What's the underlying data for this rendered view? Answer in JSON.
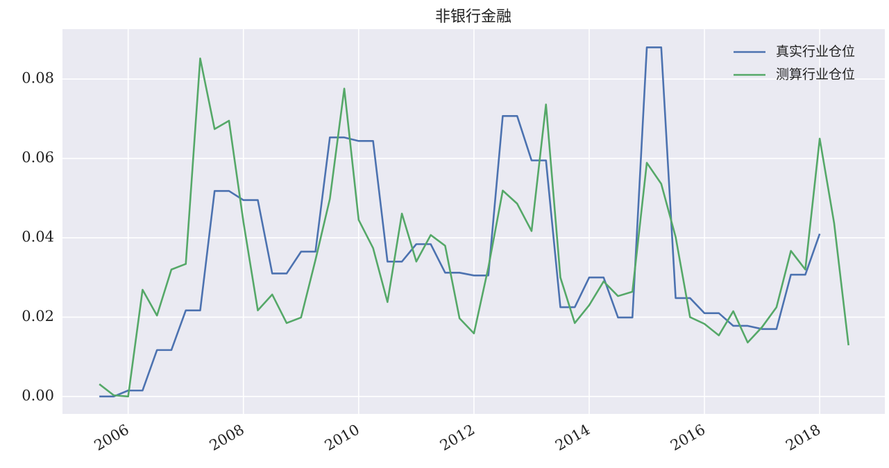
{
  "chart_data": {
    "type": "line",
    "title": "非银行金融",
    "x": [
      2005.5,
      2005.75,
      2006,
      2006.25,
      2006.5,
      2006.75,
      2007,
      2007.25,
      2007.5,
      2007.75,
      2008,
      2008.25,
      2008.5,
      2008.75,
      2009,
      2009.25,
      2009.5,
      2009.75,
      2010,
      2010.25,
      2010.5,
      2010.75,
      2011,
      2011.25,
      2011.5,
      2011.75,
      2012,
      2012.25,
      2012.5,
      2012.75,
      2013,
      2013.25,
      2013.5,
      2013.75,
      2014,
      2014.25,
      2014.5,
      2014.75,
      2015,
      2015.25,
      2015.5,
      2015.75,
      2016,
      2016.25,
      2016.5,
      2016.75,
      2017,
      2017.25,
      2017.5,
      2017.75,
      2018,
      2018.25,
      2018.5
    ],
    "series": [
      {
        "name": "真实行业仓位",
        "color": "#4c72b0",
        "values": [
          0.0,
          0.0,
          0.0015,
          0.0015,
          0.0117,
          0.0117,
          0.0217,
          0.0217,
          0.0518,
          0.0518,
          0.0495,
          0.0495,
          0.031,
          0.031,
          0.0365,
          0.0365,
          0.0653,
          0.0653,
          0.0644,
          0.0644,
          0.034,
          0.034,
          0.0384,
          0.0384,
          0.0312,
          0.0312,
          0.0305,
          0.0305,
          0.0707,
          0.0707,
          0.0595,
          0.0595,
          0.0225,
          0.0225,
          0.03,
          0.03,
          0.0199,
          0.0199,
          0.088,
          0.088,
          0.0248,
          0.0248,
          0.021,
          0.021,
          0.0178,
          0.0178,
          0.017,
          0.017,
          0.0307,
          0.0307,
          0.041,
          null,
          null
        ]
      },
      {
        "name": "测算行业仓位",
        "color": "#55a868",
        "values": [
          0.0031,
          0.0003,
          0.0,
          0.0269,
          0.0204,
          0.032,
          0.0334,
          0.0852,
          0.0674,
          0.0695,
          0.044,
          0.0217,
          0.0257,
          0.0185,
          0.0199,
          0.0344,
          0.0498,
          0.0776,
          0.0445,
          0.0374,
          0.0238,
          0.0461,
          0.034,
          0.0407,
          0.038,
          0.0197,
          0.0159,
          0.0325,
          0.0519,
          0.0486,
          0.0417,
          0.0736,
          0.03,
          0.0185,
          0.023,
          0.029,
          0.0253,
          0.0264,
          0.0589,
          0.0536,
          0.0402,
          0.02,
          0.0183,
          0.0154,
          0.0215,
          0.0136,
          0.0175,
          0.0225,
          0.0367,
          0.032,
          0.065,
          0.0437,
          0.0129
        ]
      }
    ],
    "xlim": [
      2004.86,
      2019.13
    ],
    "xticks": [
      2006,
      2008,
      2010,
      2012,
      2014,
      2016,
      2018
    ],
    "ylim": [
      -0.0044,
      0.0926
    ],
    "yticks": [
      {
        "value": 0,
        "label": "0.00"
      },
      {
        "value": 0.02,
        "label": "0.02"
      },
      {
        "value": 0.04,
        "label": "0.04"
      },
      {
        "value": 0.06,
        "label": "0.06"
      },
      {
        "value": 0.08,
        "label": "0.08"
      }
    ],
    "grid": true,
    "legend": "upper right"
  }
}
